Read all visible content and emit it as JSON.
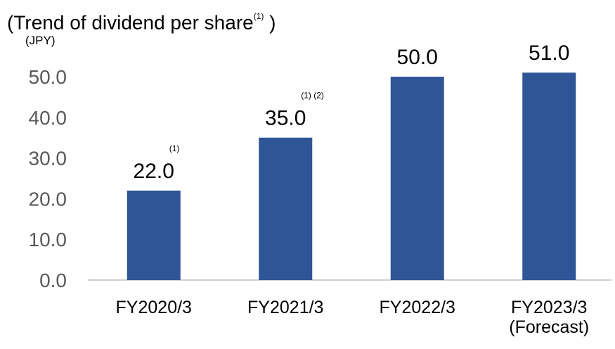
{
  "title": {
    "prefix": "(Trend of dividend per share",
    "note": "(1)",
    "suffix": " )"
  },
  "unit": "(JPY)",
  "colors": {
    "bar": "#2F5597",
    "axis": "#bfbfbf",
    "tick_text": "#595959"
  },
  "chart_data": {
    "type": "bar",
    "categories": [
      "FY2020/3",
      "FY2021/3",
      "FY2022/3",
      "FY2023/3\n(Forecast)"
    ],
    "values": [
      22.0,
      35.0,
      50.0,
      51.0
    ],
    "value_labels": [
      "22.0",
      "35.0",
      "50.0",
      "51.0"
    ],
    "footnotes": [
      "(1)",
      "(1) (2)",
      "",
      ""
    ],
    "y_ticks": [
      "0.0",
      "10.0",
      "20.0",
      "30.0",
      "40.0",
      "50.0"
    ],
    "ylim": [
      0,
      55
    ],
    "grid": false,
    "legend": "none"
  }
}
